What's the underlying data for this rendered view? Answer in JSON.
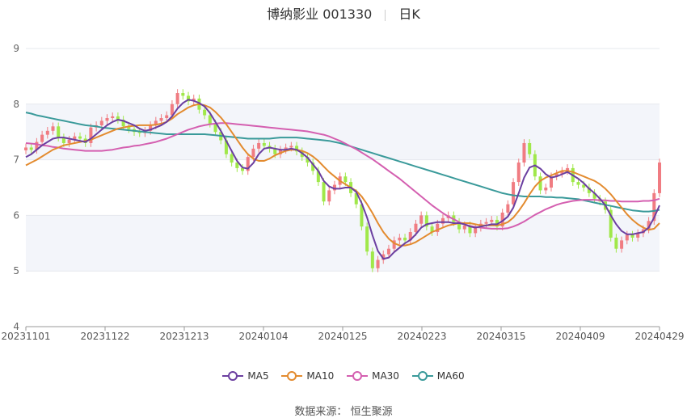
{
  "title": {
    "name": "博纳影业 001330",
    "period": "日K"
  },
  "source": {
    "label": "数据来源：",
    "value": "恒生聚源"
  },
  "colors": {
    "up": "#f07c82",
    "down": "#a0e84a",
    "MA5": "#6b3fa0",
    "MA10": "#e38b2f",
    "MA30": "#d45fb0",
    "MA60": "#3a9a9a"
  },
  "chart_data": {
    "type": "candlestick",
    "ylim": [
      4,
      9
    ],
    "yticks": [
      4,
      5,
      6,
      7,
      8,
      9
    ],
    "xticks": [
      "20231101",
      "20231122",
      "20231213",
      "20240104",
      "20240125",
      "20240223",
      "20240315",
      "20240409",
      "20240429"
    ],
    "legend": [
      "MA5",
      "MA10",
      "MA30",
      "MA60"
    ],
    "legend_position": "bottom",
    "n": 118,
    "closes": [
      7.22,
      7.18,
      7.32,
      7.45,
      7.52,
      7.6,
      7.4,
      7.3,
      7.36,
      7.42,
      7.38,
      7.3,
      7.58,
      7.62,
      7.7,
      7.75,
      7.78,
      7.72,
      7.6,
      7.55,
      7.5,
      7.48,
      7.52,
      7.62,
      7.7,
      7.75,
      7.8,
      8.0,
      8.2,
      8.15,
      8.05,
      8.1,
      7.9,
      7.8,
      7.65,
      7.5,
      7.35,
      7.1,
      6.95,
      6.85,
      6.8,
      7.05,
      7.2,
      7.3,
      7.25,
      7.2,
      7.1,
      7.18,
      7.22,
      7.25,
      7.15,
      7.05,
      6.95,
      6.8,
      6.6,
      6.25,
      6.45,
      6.55,
      6.7,
      6.6,
      6.4,
      6.2,
      5.8,
      5.35,
      5.05,
      5.2,
      5.3,
      5.4,
      5.55,
      5.6,
      5.55,
      5.7,
      5.85,
      6.0,
      5.8,
      5.7,
      5.85,
      5.95,
      6.0,
      5.88,
      5.75,
      5.82,
      5.68,
      5.78,
      5.85,
      5.88,
      5.92,
      5.8,
      6.05,
      6.2,
      6.6,
      6.95,
      7.3,
      7.1,
      6.7,
      6.45,
      6.5,
      6.7,
      6.75,
      6.8,
      6.85,
      6.6,
      6.55,
      6.5,
      6.4,
      6.3,
      6.25,
      6.1,
      5.6,
      5.4,
      5.55,
      5.65,
      5.6,
      5.68,
      5.75,
      5.9,
      6.4,
      6.95
    ],
    "ma5": [
      7.05,
      7.1,
      7.18,
      7.26,
      7.32,
      7.38,
      7.4,
      7.4,
      7.38,
      7.36,
      7.34,
      7.32,
      7.38,
      7.46,
      7.54,
      7.62,
      7.68,
      7.72,
      7.7,
      7.66,
      7.62,
      7.56,
      7.52,
      7.54,
      7.58,
      7.62,
      7.68,
      7.78,
      7.92,
      8.02,
      8.08,
      8.06,
      8.02,
      7.96,
      7.84,
      7.68,
      7.52,
      7.34,
      7.16,
      6.98,
      6.86,
      6.84,
      6.94,
      7.1,
      7.2,
      7.22,
      7.2,
      7.18,
      7.18,
      7.2,
      7.18,
      7.12,
      7.04,
      6.92,
      6.8,
      6.62,
      6.52,
      6.48,
      6.48,
      6.5,
      6.5,
      6.42,
      6.22,
      5.96,
      5.64,
      5.36,
      5.22,
      5.24,
      5.34,
      5.42,
      5.5,
      5.56,
      5.66,
      5.78,
      5.84,
      5.86,
      5.88,
      5.88,
      5.88,
      5.86,
      5.86,
      5.84,
      5.8,
      5.78,
      5.8,
      5.82,
      5.84,
      5.84,
      5.9,
      5.98,
      6.14,
      6.4,
      6.68,
      6.86,
      6.9,
      6.84,
      6.74,
      6.68,
      6.7,
      6.74,
      6.78,
      6.72,
      6.66,
      6.58,
      6.48,
      6.4,
      6.3,
      6.18,
      6.0,
      5.84,
      5.72,
      5.66,
      5.66,
      5.68,
      5.7,
      5.78,
      5.96,
      6.18
    ],
    "ma10": [
      6.9,
      6.95,
      7.0,
      7.06,
      7.12,
      7.18,
      7.22,
      7.26,
      7.28,
      7.3,
      7.32,
      7.34,
      7.36,
      7.4,
      7.44,
      7.48,
      7.52,
      7.56,
      7.58,
      7.6,
      7.61,
      7.62,
      7.62,
      7.62,
      7.63,
      7.65,
      7.68,
      7.74,
      7.82,
      7.88,
      7.94,
      7.98,
      8.0,
      7.98,
      7.94,
      7.86,
      7.76,
      7.64,
      7.5,
      7.36,
      7.22,
      7.1,
      7.02,
      6.98,
      6.98,
      7.02,
      7.08,
      7.12,
      7.16,
      7.18,
      7.18,
      7.16,
      7.12,
      7.06,
      6.98,
      6.88,
      6.78,
      6.7,
      6.62,
      6.56,
      6.5,
      6.44,
      6.34,
      6.2,
      6.04,
      5.86,
      5.7,
      5.58,
      5.5,
      5.46,
      5.46,
      5.48,
      5.52,
      5.58,
      5.64,
      5.7,
      5.74,
      5.78,
      5.82,
      5.84,
      5.86,
      5.86,
      5.86,
      5.84,
      5.82,
      5.82,
      5.82,
      5.82,
      5.84,
      5.88,
      5.96,
      6.08,
      6.22,
      6.38,
      6.52,
      6.62,
      6.68,
      6.72,
      6.76,
      6.8,
      6.8,
      6.78,
      6.74,
      6.7,
      6.66,
      6.62,
      6.56,
      6.48,
      6.38,
      6.26,
      6.14,
      6.02,
      5.92,
      5.84,
      5.78,
      5.74,
      5.76,
      5.86
    ],
    "ma30": [
      7.3,
      7.29,
      7.28,
      7.26,
      7.25,
      7.23,
      7.22,
      7.2,
      7.19,
      7.18,
      7.17,
      7.16,
      7.16,
      7.16,
      7.16,
      7.17,
      7.18,
      7.2,
      7.22,
      7.23,
      7.25,
      7.26,
      7.28,
      7.3,
      7.32,
      7.35,
      7.38,
      7.42,
      7.46,
      7.5,
      7.54,
      7.57,
      7.6,
      7.62,
      7.64,
      7.65,
      7.66,
      7.66,
      7.65,
      7.64,
      7.63,
      7.62,
      7.61,
      7.6,
      7.59,
      7.58,
      7.57,
      7.56,
      7.55,
      7.54,
      7.53,
      7.52,
      7.51,
      7.49,
      7.47,
      7.45,
      7.42,
      7.38,
      7.34,
      7.29,
      7.24,
      7.19,
      7.13,
      7.07,
      7.01,
      6.94,
      6.87,
      6.8,
      6.73,
      6.66,
      6.58,
      6.5,
      6.42,
      6.34,
      6.26,
      6.18,
      6.11,
      6.04,
      5.98,
      5.93,
      5.88,
      5.84,
      5.81,
      5.79,
      5.78,
      5.77,
      5.76,
      5.76,
      5.76,
      5.77,
      5.8,
      5.84,
      5.89,
      5.95,
      6.01,
      6.06,
      6.11,
      6.15,
      6.19,
      6.22,
      6.24,
      6.26,
      6.27,
      6.28,
      6.28,
      6.28,
      6.27,
      6.27,
      6.26,
      6.26,
      6.25,
      6.25,
      6.25,
      6.25,
      6.26,
      6.26,
      6.27,
      6.3
    ],
    "ma60": [
      7.85,
      7.83,
      7.8,
      7.78,
      7.76,
      7.74,
      7.72,
      7.7,
      7.68,
      7.66,
      7.64,
      7.62,
      7.61,
      7.6,
      7.58,
      7.57,
      7.56,
      7.55,
      7.54,
      7.53,
      7.52,
      7.51,
      7.5,
      7.49,
      7.48,
      7.47,
      7.46,
      7.46,
      7.46,
      7.46,
      7.46,
      7.46,
      7.46,
      7.46,
      7.45,
      7.44,
      7.43,
      7.42,
      7.41,
      7.4,
      7.39,
      7.38,
      7.38,
      7.38,
      7.38,
      7.38,
      7.39,
      7.4,
      7.4,
      7.4,
      7.4,
      7.39,
      7.38,
      7.37,
      7.36,
      7.35,
      7.34,
      7.32,
      7.3,
      7.27,
      7.24,
      7.21,
      7.18,
      7.15,
      7.12,
      7.09,
      7.06,
      7.03,
      7.0,
      6.97,
      6.94,
      6.91,
      6.88,
      6.85,
      6.82,
      6.79,
      6.76,
      6.73,
      6.7,
      6.67,
      6.64,
      6.61,
      6.58,
      6.55,
      6.52,
      6.49,
      6.46,
      6.43,
      6.4,
      6.38,
      6.36,
      6.35,
      6.34,
      6.34,
      6.34,
      6.34,
      6.33,
      6.33,
      6.32,
      6.32,
      6.31,
      6.3,
      6.29,
      6.27,
      6.25,
      6.23,
      6.21,
      6.19,
      6.17,
      6.15,
      6.13,
      6.11,
      6.09,
      6.08,
      6.07,
      6.07,
      6.08,
      6.1
    ]
  }
}
